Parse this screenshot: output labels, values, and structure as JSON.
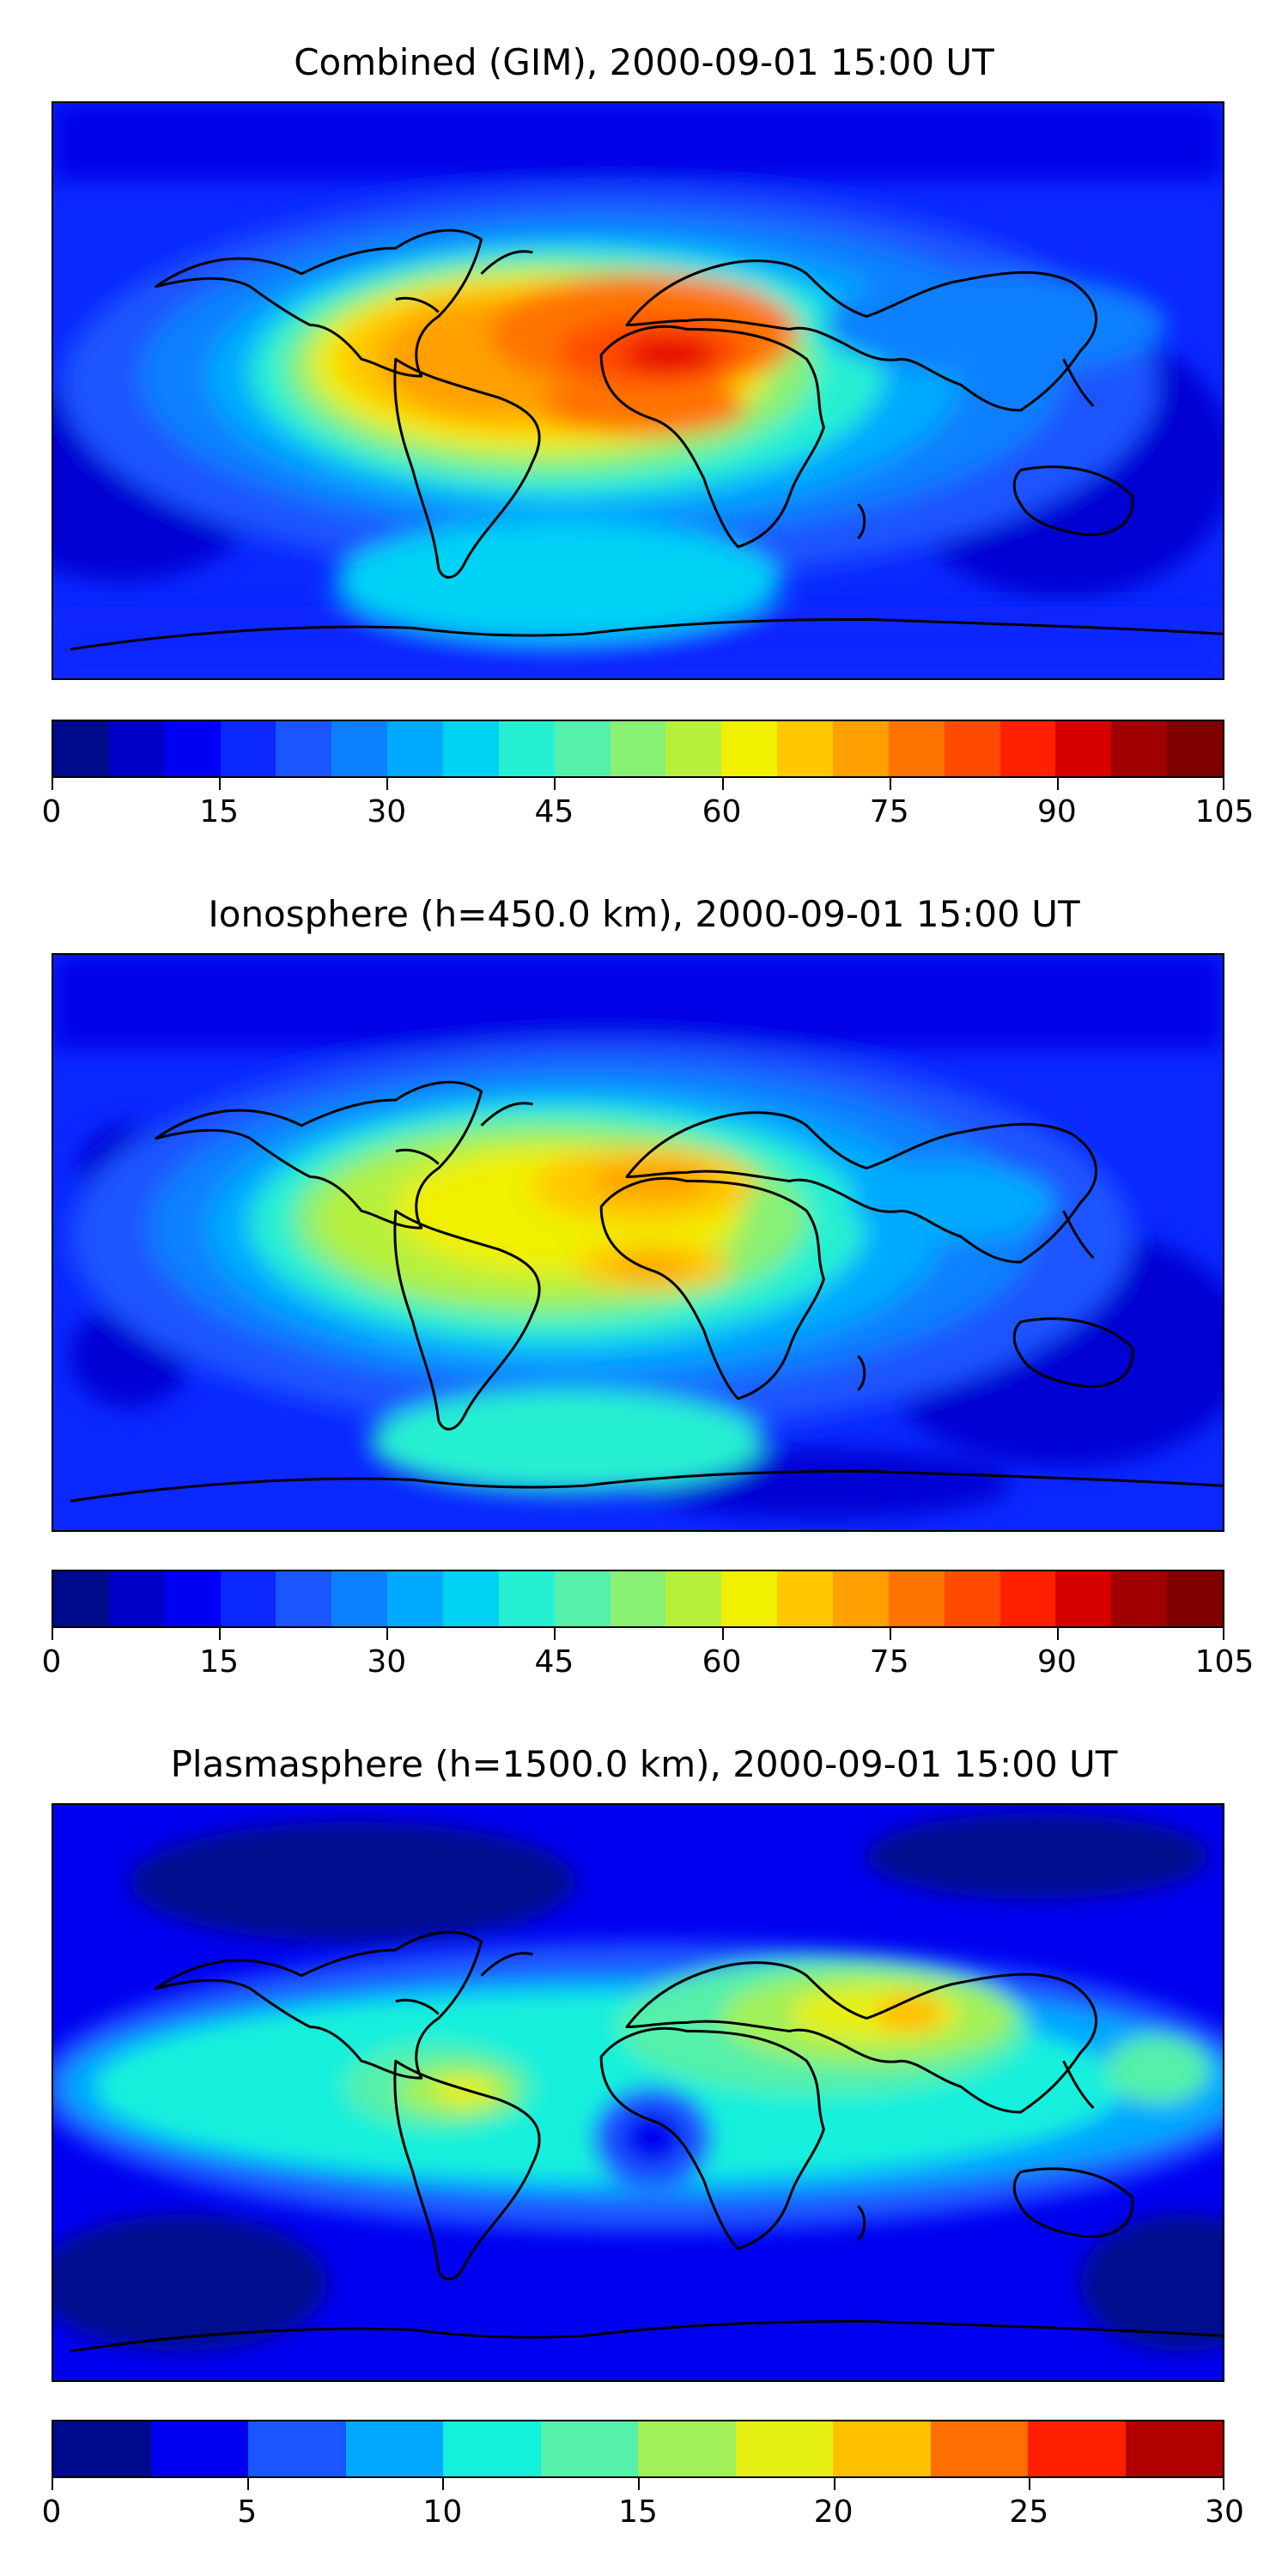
{
  "panels": [
    {
      "title": "Combined (GIM), 2000-09-01 15:00 UT",
      "colorbar": {
        "min": 0,
        "max": 105,
        "levels": 21,
        "colors": [
          "#000a8c",
          "#0000c8",
          "#0000f5",
          "#0a28ff",
          "#1a55ff",
          "#0a80ff",
          "#00aaff",
          "#00d2f5",
          "#26f0d2",
          "#55f0aa",
          "#88f073",
          "#b6f03c",
          "#f0f000",
          "#ffc800",
          "#ffa000",
          "#ff7300",
          "#ff4b00",
          "#ff2000",
          "#d70000",
          "#a00000",
          "#800000"
        ],
        "ticks": [
          0,
          15,
          30,
          45,
          60,
          75,
          90,
          105
        ]
      }
    },
    {
      "title": "Ionosphere  (h=450.0 km), 2000-09-01 15:00 UT",
      "colorbar": {
        "min": 0,
        "max": 105,
        "levels": 21,
        "colors": [
          "#000a8c",
          "#0000c8",
          "#0000f5",
          "#0a28ff",
          "#1a55ff",
          "#0a80ff",
          "#00aaff",
          "#00d2f5",
          "#26f0d2",
          "#55f0aa",
          "#88f073",
          "#b6f03c",
          "#f0f000",
          "#ffc800",
          "#ffa000",
          "#ff7300",
          "#ff4b00",
          "#ff2000",
          "#d70000",
          "#a00000",
          "#800000"
        ],
        "ticks": [
          0,
          15,
          30,
          45,
          60,
          75,
          90,
          105
        ]
      }
    },
    {
      "title": "Plasmasphere (h=1500.0 km), 2000-09-01 15:00 UT",
      "colorbar": {
        "min": 0,
        "max": 30,
        "levels": 12,
        "colors": [
          "#000a8c",
          "#0000f0",
          "#1a55ff",
          "#00a8ff",
          "#13f0dc",
          "#55f0aa",
          "#a0f05a",
          "#e6f014",
          "#ffc000",
          "#ff6e00",
          "#ff2000",
          "#b00000"
        ],
        "ticks": [
          0,
          5,
          10,
          15,
          20,
          25,
          30
        ]
      }
    }
  ]
}
